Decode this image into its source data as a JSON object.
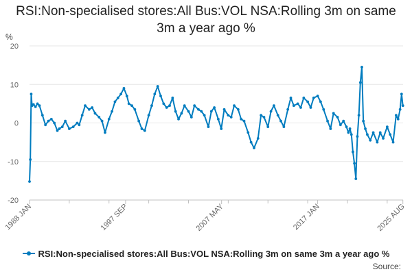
{
  "title": "RSI:Non-specialised stores:All Bus:VOL NSA:Rolling 3m on same 3m a year ago %",
  "source_label": "Source:",
  "colors": {
    "series": "#007cbf",
    "grid": "#e6e6e6",
    "axis": "#c0c0c0",
    "text": "#666666"
  },
  "chart_data": {
    "type": "line",
    "title": "RSI:Non-specialised stores:All Bus:VOL NSA:Rolling 3m on same 3m a year ago %",
    "ylabel": "%",
    "xlabel": "",
    "ylim": [
      -20,
      20
    ],
    "yticks": [
      20,
      10,
      0,
      -10,
      -20
    ],
    "xlim": [
      1988.0,
      2025.6
    ],
    "xticks": [
      {
        "x": 1988.0,
        "label": "1988 JAN"
      },
      {
        "x": 1997.67,
        "label": "1997 SEP"
      },
      {
        "x": 2007.33,
        "label": "2007 MAY"
      },
      {
        "x": 2017.0,
        "label": "2017 JAN"
      },
      {
        "x": 2025.58,
        "label": "2025 AUG"
      }
    ],
    "grid": true,
    "legend": "bottom",
    "series": [
      {
        "name": "RSI:Non-specialised stores:All Bus:VOL NSA:Rolling 3m on same 3m a year ago %",
        "x": [
          1988.0,
          1988.08,
          1988.17,
          1988.25,
          1988.4,
          1988.6,
          1988.8,
          1989.0,
          1989.3,
          1989.6,
          1989.9,
          1990.2,
          1990.5,
          1990.8,
          1991.0,
          1991.3,
          1991.6,
          1992.0,
          1992.4,
          1992.8,
          1993.0,
          1993.3,
          1993.6,
          1994.0,
          1994.3,
          1994.6,
          1995.0,
          1995.3,
          1995.6,
          1996.0,
          1996.3,
          1996.6,
          1996.9,
          1997.2,
          1997.5,
          1997.8,
          1998.0,
          1998.3,
          1998.6,
          1999.0,
          1999.3,
          1999.6,
          2000.0,
          2000.3,
          2000.6,
          2000.9,
          2001.2,
          2001.5,
          2001.8,
          2002.1,
          2002.4,
          2002.7,
          2003.0,
          2003.3,
          2003.6,
          2004.0,
          2004.3,
          2004.6,
          2005.0,
          2005.3,
          2005.6,
          2006.0,
          2006.3,
          2006.6,
          2007.0,
          2007.3,
          2007.6,
          2008.0,
          2008.3,
          2008.6,
          2009.0,
          2009.3,
          2009.6,
          2010.0,
          2010.3,
          2010.6,
          2011.0,
          2011.3,
          2011.6,
          2012.0,
          2012.3,
          2012.6,
          2013.0,
          2013.3,
          2013.6,
          2014.0,
          2014.3,
          2014.6,
          2015.0,
          2015.3,
          2015.6,
          2016.0,
          2016.3,
          2016.6,
          2017.0,
          2017.3,
          2017.6,
          2018.0,
          2018.3,
          2018.6,
          2019.0,
          2019.3,
          2019.6,
          2019.9,
          2020.1,
          2020.25,
          2020.4,
          2020.55,
          2020.7,
          2020.85,
          2021.0,
          2021.15,
          2021.3,
          2021.45,
          2021.6,
          2021.8,
          2022.0,
          2022.3,
          2022.6,
          2023.0,
          2023.3,
          2023.6,
          2024.0,
          2024.3,
          2024.6,
          2024.9,
          2025.1,
          2025.3,
          2025.45,
          2025.58
        ],
        "values": [
          -15.2,
          -9.5,
          7.5,
          4.5,
          4.8,
          4.2,
          5.0,
          4.5,
          2.0,
          -0.5,
          0.5,
          1.0,
          0.0,
          -2.0,
          -1.5,
          -1.0,
          0.5,
          -1.5,
          -1.0,
          0.0,
          -0.5,
          2.0,
          4.5,
          3.5,
          4.0,
          2.5,
          1.5,
          0.5,
          -2.5,
          1.0,
          3.0,
          5.5,
          6.5,
          7.5,
          9.0,
          7.0,
          5.0,
          4.5,
          3.5,
          0.5,
          -1.5,
          -2.0,
          2.0,
          4.5,
          7.5,
          9.5,
          7.0,
          5.0,
          4.0,
          4.5,
          6.5,
          3.0,
          1.0,
          2.5,
          4.5,
          3.0,
          1.5,
          4.5,
          3.5,
          3.0,
          2.0,
          -1.0,
          3.0,
          4.0,
          1.0,
          -1.5,
          3.5,
          2.0,
          1.5,
          4.5,
          3.5,
          1.0,
          0.5,
          -2.5,
          -5.0,
          -6.5,
          -4.0,
          2.0,
          1.5,
          -1.0,
          3.0,
          4.5,
          2.0,
          0.5,
          -1.0,
          3.5,
          6.5,
          4.5,
          5.0,
          4.0,
          6.5,
          5.5,
          4.0,
          6.5,
          7.0,
          5.5,
          3.5,
          0.5,
          -1.5,
          2.5,
          1.5,
          -0.5,
          0.5,
          -1.0,
          -2.5,
          -1.5,
          -3.0,
          -7.5,
          -10.5,
          -14.5,
          -3.5,
          2.0,
          10.5,
          14.5,
          0.5,
          -1.5,
          -3.0,
          -4.5,
          -2.5,
          -5.0,
          -2.5,
          -4.0,
          -1.0,
          -3.0,
          -5.0,
          2.0,
          1.0,
          3.5,
          7.5,
          4.5
        ]
      }
    ]
  }
}
